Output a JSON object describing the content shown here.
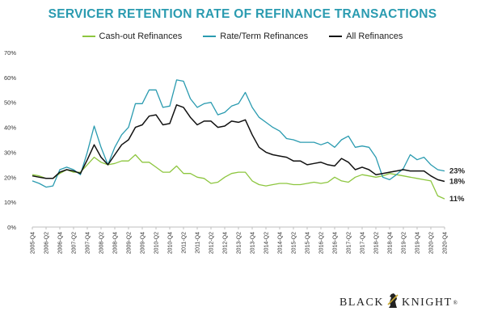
{
  "chart_data": {
    "type": "line",
    "title": "SERVICER RETENTION RATE OF REFINANCE TRANSACTIONS",
    "ylim": [
      0,
      70
    ],
    "yticks": [
      0,
      10,
      20,
      30,
      40,
      50,
      60,
      70
    ],
    "ytick_labels": [
      "0%",
      "10%",
      "20%",
      "30%",
      "40%",
      "50%",
      "60%",
      "70%"
    ],
    "grid": false,
    "legend": "top",
    "x": [
      "2005-Q4",
      "2006-Q1",
      "2006-Q2",
      "2006-Q3",
      "2006-Q4",
      "2007-Q1",
      "2007-Q2",
      "2007-Q3",
      "2007-Q4",
      "2008-Q1",
      "2008-Q2",
      "2008-Q3",
      "2008-Q4",
      "2009-Q1",
      "2009-Q2",
      "2009-Q3",
      "2009-Q4",
      "2010-Q1",
      "2010-Q2",
      "2010-Q3",
      "2010-Q4",
      "2011-Q1",
      "2011-Q2",
      "2011-Q3",
      "2011-Q4",
      "2012-Q1",
      "2012-Q2",
      "2012-Q3",
      "2012-Q4",
      "2013-Q1",
      "2013-Q2",
      "2013-Q3",
      "2013-Q4",
      "2014-Q1",
      "2014-Q2",
      "2014-Q3",
      "2014-Q4",
      "2015-Q1",
      "2015-Q2",
      "2015-Q3",
      "2015-Q4",
      "2016-Q1",
      "2016-Q2",
      "2016-Q3",
      "2016-Q4",
      "2017-Q1",
      "2017-Q2",
      "2017-Q3",
      "2017-Q4",
      "2018-Q1",
      "2018-Q2",
      "2018-Q3",
      "2018-Q4",
      "2019-Q1",
      "2019-Q2",
      "2019-Q3",
      "2019-Q4",
      "2020-Q1",
      "2020-Q2",
      "2020-Q3",
      "2020-Q4"
    ],
    "x_tick_labels": [
      "2005-Q4",
      "2006-Q2",
      "2006-Q4",
      "2007-Q2",
      "2007-Q4",
      "2008-Q2",
      "2008-Q4",
      "2009-Q2",
      "2009-Q4",
      "2010-Q2",
      "2010-Q4",
      "2011-Q2",
      "2011-Q4",
      "2012-Q2",
      "2012-Q4",
      "2013-Q2",
      "2013-Q4",
      "2014-Q2",
      "2014-Q4",
      "2015-Q2",
      "2015-Q4",
      "2016-Q2",
      "2016-Q4",
      "2017-Q2",
      "2017-Q4",
      "2018-Q2",
      "2018-Q4",
      "2019-Q2",
      "2019-Q4",
      "2020-Q2",
      "2020-Q4"
    ],
    "series": [
      {
        "name": "Cash-out Refinances",
        "color": "#8dc63f",
        "end_label": "11%",
        "values": [
          21,
          20.5,
          19.5,
          19.5,
          21.5,
          23,
          22,
          22,
          25,
          28,
          26,
          25,
          25.5,
          26.5,
          26.5,
          29,
          26,
          26,
          24,
          22,
          22,
          24.5,
          21.5,
          21.5,
          20,
          19.5,
          17.5,
          18,
          20,
          21.5,
          22,
          22,
          18.5,
          17,
          16.5,
          17,
          17.5,
          17.5,
          17,
          17,
          17.5,
          18,
          17.5,
          18,
          20,
          18.5,
          18,
          20,
          21,
          20.5,
          20,
          20.5,
          21.5,
          21,
          20.5,
          20,
          19.5,
          19,
          18.5,
          12.5,
          11.3
        ]
      },
      {
        "name": "Rate/Term Refinances",
        "color": "#2a9bb0",
        "end_label": "23%",
        "values": [
          18.5,
          17.5,
          16,
          16.5,
          23,
          24,
          23,
          21,
          30,
          40.5,
          32,
          25,
          32,
          37,
          40,
          49.5,
          49.5,
          55,
          55,
          48,
          48.5,
          59,
          58.5,
          51.5,
          48,
          49.5,
          50,
          45,
          46,
          48.5,
          49.5,
          54,
          48,
          44,
          42,
          40,
          38.5,
          35.5,
          35,
          34,
          34,
          34,
          33,
          34,
          32,
          35,
          36.5,
          32,
          32.5,
          32,
          28,
          20,
          19,
          21,
          23.5,
          29,
          27,
          28,
          25,
          23,
          22.5
        ]
      },
      {
        "name": "All Refinances",
        "color": "#111111",
        "end_label": "18%",
        "values": [
          20.5,
          20,
          19.5,
          19.5,
          22,
          23,
          22.5,
          21.5,
          27,
          33,
          28,
          25,
          29,
          33,
          35,
          40,
          41,
          44.5,
          45,
          41,
          41.5,
          49,
          48,
          44,
          41,
          42.5,
          42.5,
          40,
          40.5,
          42.5,
          42,
          43,
          37,
          32,
          30,
          29,
          28.5,
          28,
          26.5,
          26.5,
          25,
          25.5,
          26,
          25,
          24.5,
          27.5,
          26,
          23,
          24,
          23,
          21,
          21.5,
          22,
          22.5,
          23,
          22.5,
          22.5,
          22.5,
          20.5,
          19,
          18.3
        ]
      }
    ]
  },
  "brand": {
    "left": "BLACK",
    "right": "KNIGHT",
    "mark": "®"
  }
}
